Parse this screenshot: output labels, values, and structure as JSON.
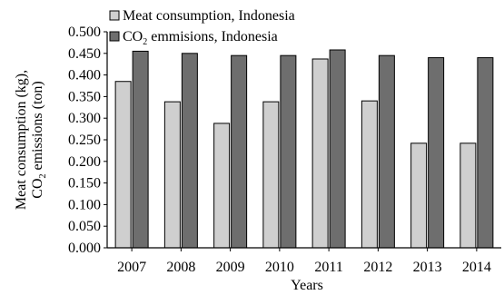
{
  "chart_data": {
    "type": "bar",
    "categories": [
      "2007",
      "2008",
      "2009",
      "2010",
      "2011",
      "2012",
      "2013",
      "2014"
    ],
    "series": [
      {
        "name": "Meat consumption, Indonesia",
        "color": "#cfcfcf",
        "values": [
          0.385,
          0.338,
          0.288,
          0.338,
          0.437,
          0.34,
          0.242,
          0.242
        ]
      },
      {
        "name_prefix": "CO",
        "name_subscript": "2",
        "name_suffix": " emmisions, Indonesia",
        "color": "#6e6e6e",
        "values": [
          0.455,
          0.45,
          0.445,
          0.445,
          0.458,
          0.445,
          0.44,
          0.44
        ]
      }
    ],
    "xlabel": "Years",
    "ylabel_line1": "Meat consumption (kg),",
    "ylabel_line2_prefix": "CO",
    "ylabel_line2_subscript": "2",
    "ylabel_line2_suffix": " emissions (ton)",
    "ylim": [
      0,
      0.5
    ],
    "yticks": [
      "0.000",
      "0.050",
      "0.100",
      "0.150",
      "0.200",
      "0.250",
      "0.300",
      "0.350",
      "0.400",
      "0.450",
      "0.500"
    ],
    "grid": false,
    "legend_position": "top-left"
  }
}
